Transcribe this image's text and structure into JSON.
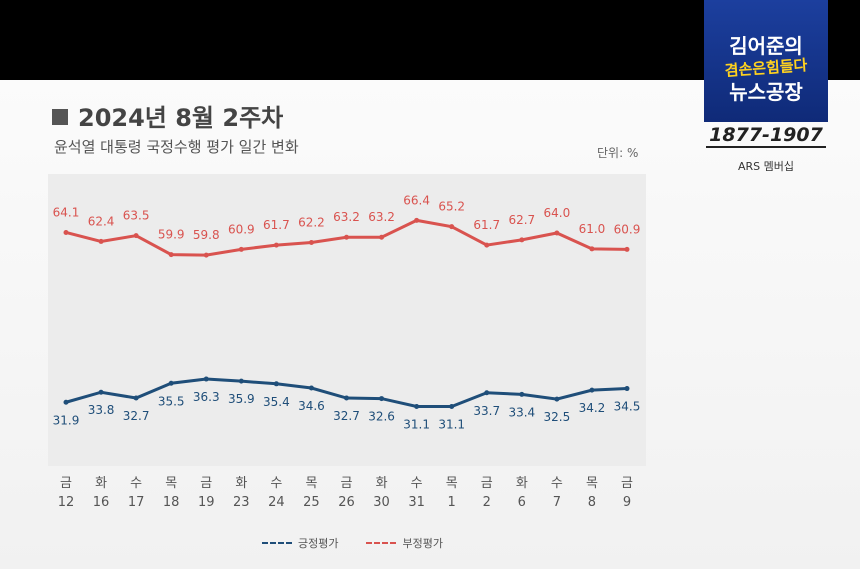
{
  "title": "2024년 8월 2주차",
  "subtitle": "윤석열 대통령 국정수행 평가 일간 변화",
  "unit_label": "단위: %",
  "logo": {
    "line1": "김어준의",
    "line2": "겸손은힘들다",
    "line3": "뉴스공장",
    "phone": "1877-1907",
    "ars": "ARS 멤버십"
  },
  "chart_data": {
    "type": "line",
    "categories": [
      {
        "day": "금",
        "date": "12"
      },
      {
        "day": "화",
        "date": "16"
      },
      {
        "day": "수",
        "date": "17"
      },
      {
        "day": "목",
        "date": "18"
      },
      {
        "day": "금",
        "date": "19"
      },
      {
        "day": "화",
        "date": "23"
      },
      {
        "day": "수",
        "date": "24"
      },
      {
        "day": "목",
        "date": "25"
      },
      {
        "day": "금",
        "date": "26"
      },
      {
        "day": "화",
        "date": "30"
      },
      {
        "day": "수",
        "date": "31"
      },
      {
        "day": "목",
        "date": "1"
      },
      {
        "day": "금",
        "date": "2"
      },
      {
        "day": "화",
        "date": "6"
      },
      {
        "day": "수",
        "date": "7"
      },
      {
        "day": "목",
        "date": "8"
      },
      {
        "day": "금",
        "date": "9"
      }
    ],
    "series": [
      {
        "name": "부정평가",
        "color": "#d9534f",
        "values": [
          64.1,
          62.4,
          63.5,
          59.9,
          59.8,
          60.9,
          61.7,
          62.2,
          63.2,
          63.2,
          66.4,
          65.2,
          61.7,
          62.7,
          64.0,
          61.0,
          60.9
        ],
        "labels": [
          "64.1",
          "62.4",
          "63.5",
          "59.9",
          "59.8",
          "60.9",
          "61.7",
          "62.2",
          "63.2",
          "63.2",
          "66.4",
          "65.2",
          "61.7",
          "62.7",
          "64.0",
          "61.0",
          "60.9"
        ]
      },
      {
        "name": "긍정평가",
        "color": "#1f4e79",
        "values": [
          31.9,
          33.8,
          32.7,
          35.5,
          36.3,
          35.9,
          35.4,
          34.6,
          32.7,
          32.6,
          31.1,
          31.1,
          33.7,
          33.4,
          32.5,
          34.2,
          34.5
        ],
        "labels": [
          "31.9",
          "33.8",
          "32.7",
          "35.5",
          "36.3",
          "35.9",
          "35.4",
          "34.6",
          "32.7",
          "32.6",
          "31.1",
          "31.1",
          "33.7",
          "33.4",
          "32.5",
          "34.2",
          "34.5"
        ]
      }
    ],
    "ylim": [
      20,
      75
    ],
    "legend": [
      "긍정평가",
      "부정평가"
    ],
    "legend_position": "bottom-center",
    "grid": false
  }
}
